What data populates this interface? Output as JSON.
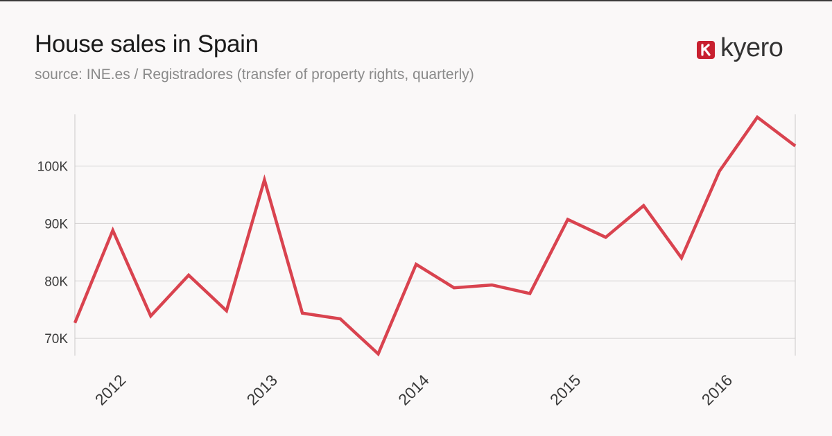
{
  "header": {
    "title": "House sales in Spain",
    "subtitle": "source: INE.es / Registradores (transfer of property rights, quarterly)"
  },
  "logo": {
    "wordmark": "kyero",
    "mark_color": "#c8202f",
    "text_color": "#333333"
  },
  "chart_data": {
    "type": "line",
    "title": "House sales in Spain",
    "subtitle": "source: INE.es / Registradores (transfer of property rights, quarterly)",
    "xlabel": "",
    "ylabel": "",
    "x": [
      "2012 Q1",
      "2012 Q2",
      "2012 Q3",
      "2012 Q4",
      "2013 Q1",
      "2013 Q2",
      "2013 Q3",
      "2013 Q4",
      "2014 Q1",
      "2014 Q2",
      "2014 Q3",
      "2014 Q4",
      "2015 Q1",
      "2015 Q2",
      "2015 Q3",
      "2015 Q4",
      "2016 Q1",
      "2016 Q2",
      "2016 Q3",
      "2016 Q4"
    ],
    "series": [
      {
        "name": "",
        "color": "#d9434f",
        "values": [
          72700,
          88800,
          73900,
          81000,
          74800,
          97600,
          74400,
          73400,
          67300,
          82900,
          78800,
          79300,
          77800,
          90700,
          87600,
          93100,
          84000,
          99100,
          108500,
          103500
        ]
      }
    ],
    "x_tick_labels": [
      "2012",
      "2013",
      "2014",
      "2015",
      "2016"
    ],
    "x_tick_positions": [
      1,
      5,
      9,
      13,
      17
    ],
    "y_ticks": [
      70000,
      80000,
      90000,
      100000
    ],
    "y_tick_labels": [
      "70K",
      "80K",
      "90K",
      "100K"
    ],
    "ylim": [
      67000,
      109000
    ],
    "grid": true,
    "legend": "none"
  }
}
